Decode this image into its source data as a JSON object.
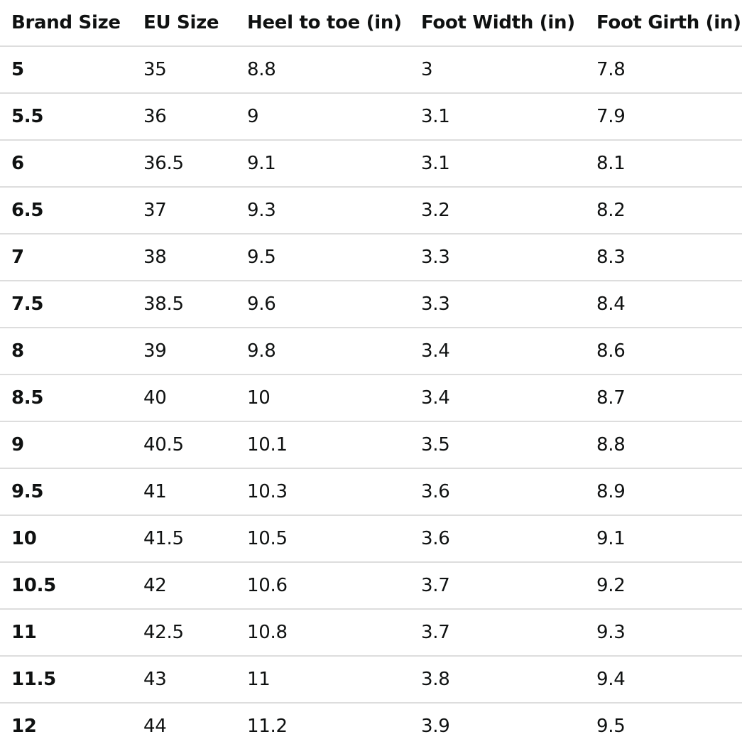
{
  "table": {
    "headers": [
      "Brand Size",
      "EU Size",
      "Heel to toe (in)",
      "Foot Width (in)",
      "Foot Girth (in)"
    ],
    "rows": [
      [
        "5",
        "35",
        "8.8",
        "3",
        "7.8"
      ],
      [
        "5.5",
        "36",
        "9",
        "3.1",
        "7.9"
      ],
      [
        "6",
        "36.5",
        "9.1",
        "3.1",
        "8.1"
      ],
      [
        "6.5",
        "37",
        "9.3",
        "3.2",
        "8.2"
      ],
      [
        "7",
        "38",
        "9.5",
        "3.3",
        "8.3"
      ],
      [
        "7.5",
        "38.5",
        "9.6",
        "3.3",
        "8.4"
      ],
      [
        "8",
        "39",
        "9.8",
        "3.4",
        "8.6"
      ],
      [
        "8.5",
        "40",
        "10",
        "3.4",
        "8.7"
      ],
      [
        "9",
        "40.5",
        "10.1",
        "3.5",
        "8.8"
      ],
      [
        "9.5",
        "41",
        "10.3",
        "3.6",
        "8.9"
      ],
      [
        "10",
        "41.5",
        "10.5",
        "3.6",
        "9.1"
      ],
      [
        "10.5",
        "42",
        "10.6",
        "3.7",
        "9.2"
      ],
      [
        "11",
        "42.5",
        "10.8",
        "3.7",
        "9.3"
      ],
      [
        "11.5",
        "43",
        "11",
        "3.8",
        "9.4"
      ],
      [
        "12",
        "44",
        "11.2",
        "3.9",
        "9.5"
      ]
    ]
  }
}
